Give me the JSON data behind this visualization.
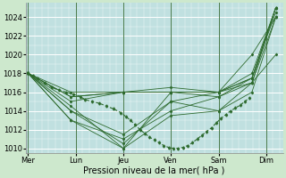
{
  "title": "",
  "xlabel": "Pression niveau de la mer( hPa )",
  "background_color": "#cde8cd",
  "plot_bg_color": "#c0e0e0",
  "line_color": "#2d6a2d",
  "ylim": [
    1009.5,
    1025.5
  ],
  "yticks": [
    1010,
    1012,
    1014,
    1016,
    1018,
    1020,
    1022,
    1024
  ],
  "day_labels": [
    "Mer",
    "Lun",
    "Jeu",
    "Ven",
    "Sam",
    "Dim"
  ],
  "day_x": [
    0,
    1,
    2,
    3,
    4,
    5
  ],
  "xlim": [
    -0.05,
    5.35
  ],
  "series": [
    [
      1018,
      1016,
      1016,
      1016,
      1016,
      1020,
      1024
    ],
    [
      1018,
      1015.5,
      1016,
      1016,
      1015.5,
      1017.5,
      1024.5
    ],
    [
      1018,
      1015,
      1016,
      1016,
      1016,
      1018,
      1025
    ],
    [
      1018,
      1014.5,
      1010,
      1016,
      1016,
      1017,
      1024
    ],
    [
      1018,
      1014,
      1010.5,
      1015,
      1014,
      1017,
      1020
    ],
    [
      1018,
      1013,
      1010,
      1013.5,
      1014,
      1016,
      1024
    ],
    [
      1018,
      1013,
      1011,
      1014,
      1015.5,
      1017,
      1025
    ],
    [
      1018,
      1014,
      1011.5,
      1015,
      1016,
      1017.5,
      1025
    ],
    [
      1018,
      1015.5,
      1016,
      1016.5,
      1016,
      1017.5,
      1025
    ]
  ],
  "series_x": [
    0,
    0.9,
    2.0,
    3.0,
    4.0,
    4.7,
    5.2
  ],
  "obs_x": [
    0,
    0.1,
    0.2,
    0.35,
    0.5,
    0.65,
    0.8,
    0.95,
    1.1,
    1.2,
    1.35,
    1.5,
    1.65,
    1.8,
    1.95,
    2.05,
    2.15,
    2.25,
    2.35,
    2.45,
    2.55,
    2.65,
    2.75,
    2.85,
    2.95,
    3.05,
    3.15,
    3.25,
    3.35,
    3.45,
    3.55,
    3.65,
    3.75,
    3.85,
    3.95,
    4.05,
    4.15,
    4.25,
    4.35,
    4.45,
    4.55,
    4.65
  ],
  "obs_y": [
    1018,
    1017.8,
    1017.5,
    1017,
    1016.5,
    1016.2,
    1016,
    1015.8,
    1015.5,
    1015.2,
    1015,
    1014.8,
    1014.5,
    1014.2,
    1013.8,
    1013.4,
    1013.0,
    1012.5,
    1012.0,
    1011.6,
    1011.2,
    1010.9,
    1010.6,
    1010.3,
    1010.1,
    1010.0,
    1010.0,
    1010.1,
    1010.3,
    1010.6,
    1011.0,
    1011.4,
    1011.8,
    1012.2,
    1012.7,
    1013.2,
    1013.6,
    1014.0,
    1014.3,
    1014.6,
    1015.0,
    1015.4
  ],
  "tick_fontsize": 6,
  "xlabel_fontsize": 7,
  "figsize": [
    3.2,
    2.0
  ],
  "dpi": 100
}
